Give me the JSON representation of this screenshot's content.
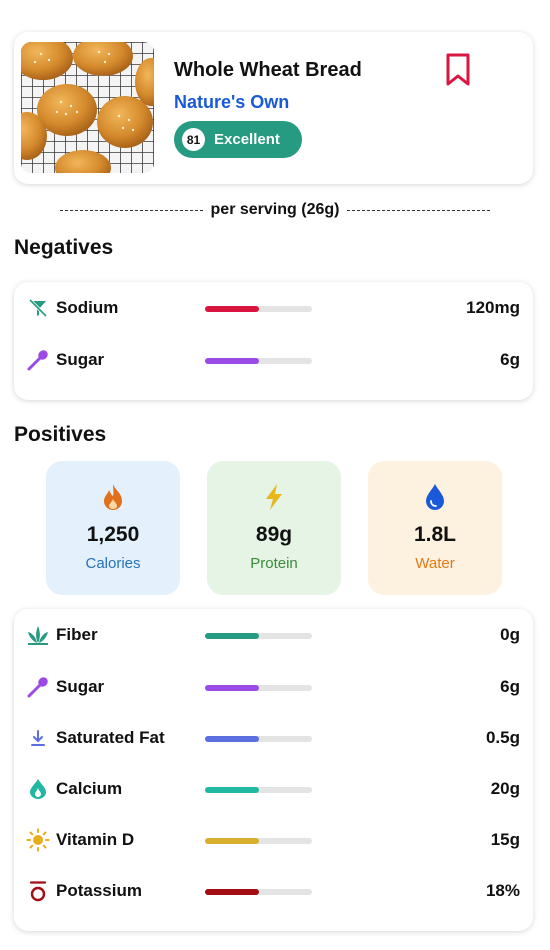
{
  "product": {
    "name": "Whole Wheat Bread",
    "brand": "Nature's Own",
    "score": "81",
    "rating": "Excellent",
    "photo_icon": "bread-rolls-photo",
    "bookmark_icon": "bookmark-icon",
    "score_color": "#279a82",
    "bookmark_color": "#d8163f"
  },
  "serving": {
    "text": "per serving  (26g)"
  },
  "negatives": {
    "title": "Negatives",
    "items": [
      {
        "label": "Sodium",
        "value": "120mg",
        "icon": "no-salt-icon",
        "color": "#d8163f",
        "level": 0.5
      },
      {
        "label": "Sugar",
        "value": "6g",
        "icon": "spoon-icon",
        "color": "#9b4ae6",
        "level": 0.5
      }
    ]
  },
  "positives": {
    "title": "Positives",
    "tiles": [
      {
        "value": "1,250",
        "label": "Calories",
        "icon": "flame-icon",
        "bg": "#e4f0fc",
        "label_color": "#2672b8",
        "icon_color": "#e0701c"
      },
      {
        "value": "89g",
        "label": "Protein",
        "icon": "lightning-icon",
        "bg": "#e6f4e6",
        "label_color": "#3a8a3a",
        "icon_color": "#e6b81c"
      },
      {
        "value": "1.8L",
        "label": "Water",
        "icon": "water-drop-icon",
        "bg": "#fdf1e0",
        "label_color": "#e07a14",
        "icon_color": "#1a5ad8"
      }
    ],
    "items": [
      {
        "label": "Fiber",
        "value": "0g",
        "icon": "leaf-icon",
        "color": "#279a82",
        "level": 0.5
      },
      {
        "label": "Sugar",
        "value": "6g",
        "icon": "spoon-icon",
        "color": "#9b4ae6",
        "level": 0.5
      },
      {
        "label": "Saturated Fat",
        "value": "0.5g",
        "icon": "arrow-down-icon",
        "color": "#5b6fe0",
        "level": 0.5
      },
      {
        "label": "Calcium",
        "value": "20g",
        "icon": "drop-icon",
        "color": "#20b8a0",
        "level": 0.5
      },
      {
        "label": "Vitamin D",
        "value": "15g",
        "icon": "sun-icon",
        "color": "#d8ae2e",
        "level": 0.5
      },
      {
        "label": "Potassium",
        "value": "18%",
        "icon": "potassium-icon",
        "color": "#a30d14",
        "level": 0.5
      }
    ]
  }
}
